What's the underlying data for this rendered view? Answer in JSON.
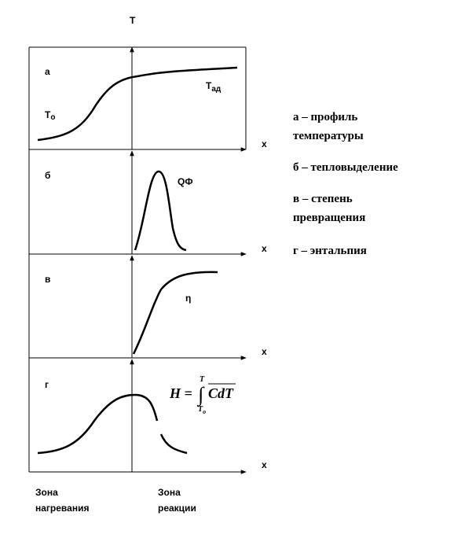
{
  "axis_label": "T",
  "panels": [
    {
      "letter": "а",
      "x_label": "x"
    },
    {
      "letter": "б",
      "x_label": "x"
    },
    {
      "letter": "в",
      "x_label": "x"
    },
    {
      "letter": "г",
      "x_label": "x"
    }
  ],
  "annotations": {
    "t0": {
      "main": "T",
      "sub": "о"
    },
    "tad": {
      "main": "Т",
      "sub": "ад"
    },
    "qf": "QФ",
    "eta": "η",
    "formula": {
      "lhs": "H =",
      "integral": "∫",
      "upper": "T",
      "lower": "T",
      "lower_sub": "о",
      "integrand": "CdT"
    }
  },
  "zones": [
    {
      "line1": "Зона",
      "line2": "нагревания"
    },
    {
      "line1": "Зона",
      "line2": "реакции"
    }
  ],
  "legend": [
    {
      "lines": [
        "а – профиль",
        "температуры"
      ]
    },
    {
      "lines": [
        "б – тепловыделение"
      ]
    },
    {
      "lines": [
        "в – степень",
        "превращения"
      ]
    },
    {
      "lines": [
        "г – энтальпия"
      ]
    }
  ]
}
